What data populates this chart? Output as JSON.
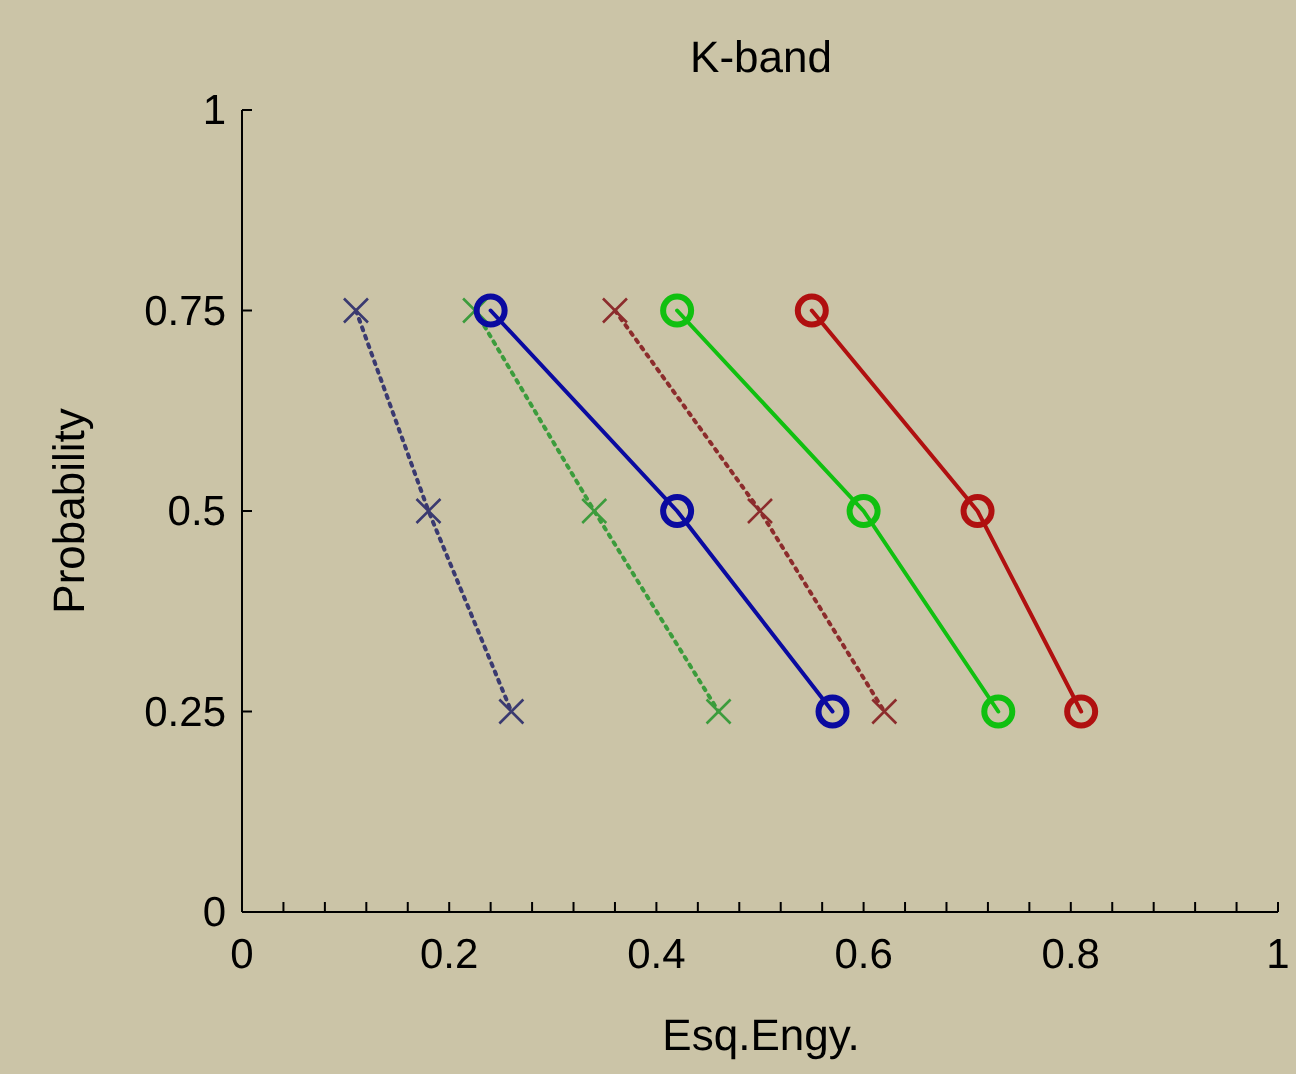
{
  "chart_data": {
    "type": "line",
    "title": "K-band",
    "xlabel": "Esq.Engy.",
    "ylabel": "Probability",
    "xlim": [
      0,
      1
    ],
    "ylim": [
      0,
      1
    ],
    "xticks": [
      0,
      {
        "value": 0.04,
        "label": null
      },
      {
        "value": 0.08,
        "label": null
      },
      {
        "value": 0.12,
        "label": null
      },
      {
        "value": 0.16,
        "label": null
      },
      {
        "value": 0.2,
        "label": "0.2"
      },
      {
        "value": 0.24,
        "label": null
      },
      {
        "value": 0.28,
        "label": null
      },
      {
        "value": 0.32,
        "label": null
      },
      {
        "value": 0.36,
        "label": null
      },
      {
        "value": 0.4,
        "label": "0.4"
      },
      {
        "value": 0.44,
        "label": null
      },
      {
        "value": 0.48,
        "label": null
      },
      {
        "value": 0.52,
        "label": null
      },
      {
        "value": 0.56,
        "label": null
      },
      {
        "value": 0.6,
        "label": "0.6"
      },
      {
        "value": 0.64,
        "label": null
      },
      {
        "value": 0.68,
        "label": null
      },
      {
        "value": 0.72,
        "label": null
      },
      {
        "value": 0.76,
        "label": null
      },
      {
        "value": 0.8,
        "label": "0.8"
      },
      {
        "value": 0.84,
        "label": null
      },
      {
        "value": 0.88,
        "label": null
      },
      {
        "value": 0.92,
        "label": null
      },
      {
        "value": 0.96,
        "label": null
      },
      1
    ],
    "yticks": [
      0,
      0.25,
      0.5,
      0.75,
      1
    ],
    "grid": false,
    "series": [
      {
        "color": "#3a3a70",
        "marker": "cross",
        "line_style": "dotted",
        "x": [
          0.11,
          0.18,
          0.26
        ],
        "values": [
          0.75,
          0.5,
          0.25
        ]
      },
      {
        "color": "#3c9c3c",
        "marker": "cross",
        "line_style": "dotted",
        "x": [
          0.225,
          0.34,
          0.46
        ],
        "values": [
          0.75,
          0.5,
          0.25
        ]
      },
      {
        "color": "#8c2c2c",
        "marker": "cross",
        "line_style": "dotted",
        "x": [
          0.36,
          0.5,
          0.62
        ],
        "values": [
          0.75,
          0.5,
          0.25
        ]
      },
      {
        "color": "#0a0aa0",
        "marker": "circle",
        "line_style": "solid",
        "x": [
          0.24,
          0.42,
          0.57
        ],
        "values": [
          0.75,
          0.5,
          0.25
        ]
      },
      {
        "color": "#10c010",
        "marker": "circle",
        "line_style": "solid",
        "x": [
          0.42,
          0.6,
          0.73
        ],
        "values": [
          0.75,
          0.5,
          0.25
        ]
      },
      {
        "color": "#b01010",
        "marker": "circle",
        "line_style": "solid",
        "x": [
          0.55,
          0.71,
          0.81
        ],
        "values": [
          0.75,
          0.5,
          0.25
        ]
      }
    ]
  }
}
